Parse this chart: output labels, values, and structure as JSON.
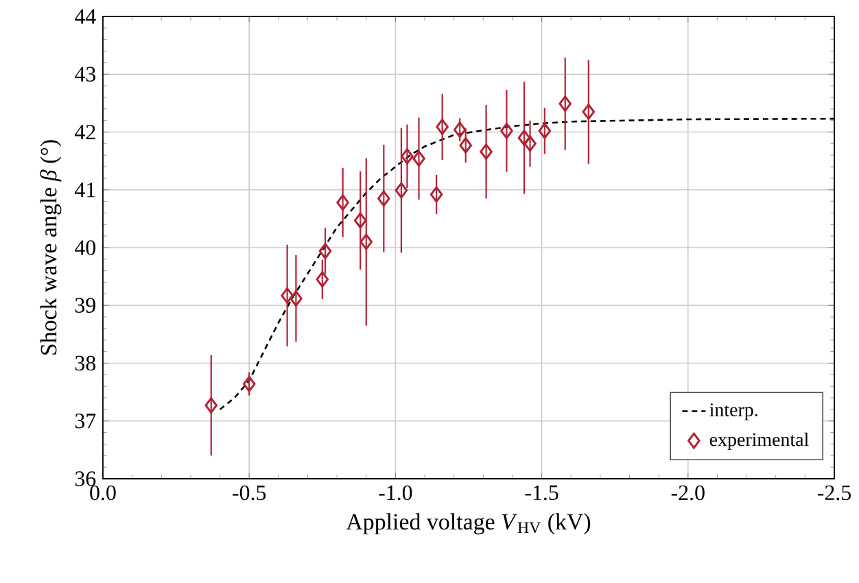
{
  "chart_data": {
    "type": "scatter",
    "xlabel": "Applied voltage *V*$_{HV}$ (kV)",
    "ylabel": "Shock wave angle *β* (°)",
    "xlim": [
      0,
      -2.5
    ],
    "xticks": [
      {
        "value": 0,
        "label": "0.0"
      },
      {
        "value": -0.5,
        "label": "-0.5"
      },
      {
        "value": -1.0,
        "label": "-1.0"
      },
      {
        "value": -1.5,
        "label": "-1.5"
      },
      {
        "value": -2.0,
        "label": "-2.0"
      },
      {
        "value": -2.5,
        "label": "-2.5"
      }
    ],
    "ylim": [
      36,
      44
    ],
    "yticks": [
      36,
      37,
      38,
      39,
      40,
      41,
      42,
      43,
      44
    ],
    "grid": true,
    "legend": "bottom right",
    "series": [
      {
        "name": "interp.",
        "type": "line",
        "line_style": "dashed",
        "marker": "none",
        "color": "#000000",
        "x": [
          -0.4,
          -0.45,
          -0.5,
          -0.55,
          -0.6,
          -0.65,
          -0.7,
          -0.75,
          -0.8,
          -0.85,
          -0.9,
          -0.95,
          -1.0,
          -1.05,
          -1.1,
          -1.15,
          -1.2,
          -1.3,
          -1.4,
          -1.5,
          -1.6,
          -1.8,
          -2.0,
          -2.5
        ],
        "values": [
          37.2,
          37.4,
          37.7,
          38.2,
          38.7,
          39.15,
          39.55,
          39.95,
          40.35,
          40.65,
          40.95,
          41.2,
          41.4,
          41.6,
          41.75,
          41.85,
          41.95,
          42.03,
          42.1,
          42.15,
          42.18,
          42.2,
          42.22,
          42.23
        ]
      },
      {
        "name": "experimental",
        "marker": "diamond",
        "color": "#b22234",
        "x": [
          -0.37,
          -0.5,
          -0.63,
          -0.66,
          -0.75,
          -0.76,
          -0.82,
          -0.88,
          -0.9,
          -0.96,
          -1.02,
          -1.04,
          -1.08,
          -1.14,
          -1.16,
          -1.22,
          -1.24,
          -1.31,
          -1.38,
          -1.44,
          -1.46,
          -1.51,
          -1.58,
          -1.66
        ],
        "values": [
          37.27,
          37.64,
          39.17,
          39.12,
          39.45,
          39.94,
          40.78,
          40.47,
          40.1,
          40.85,
          40.99,
          41.58,
          41.54,
          40.92,
          42.09,
          42.04,
          41.77,
          41.66,
          42.02,
          41.9,
          41.8,
          42.02,
          42.49,
          42.35
        ],
        "errors": [
          0.87,
          0.2,
          0.88,
          0.75,
          0.34,
          0.4,
          0.6,
          0.85,
          1.45,
          0.93,
          1.08,
          0.55,
          0.71,
          0.34,
          0.57,
          0.2,
          0.3,
          0.81,
          0.71,
          0.97,
          0.4,
          0.4,
          0.8,
          0.9
        ]
      }
    ]
  }
}
